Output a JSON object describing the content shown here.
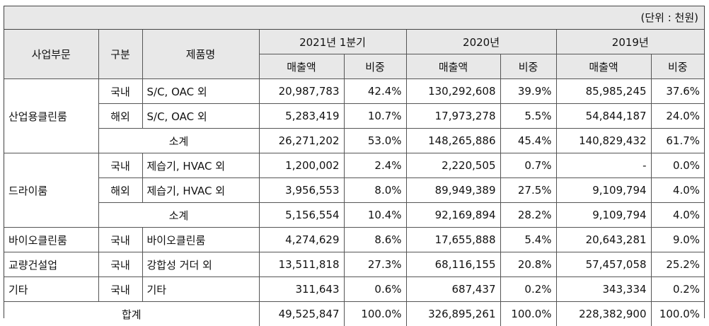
{
  "unit_label": "(단위 : 천원)",
  "header": {
    "col_segment": "사업부문",
    "col_type": "구분",
    "col_product": "제품명",
    "periods": [
      "2021년 1분기",
      "2020년",
      "2019년"
    ],
    "sales_label": "매출액",
    "share_label": "비중"
  },
  "rows": [
    {
      "segment": "산업용클린룸",
      "type": "국내",
      "product": "S/C, OAC 외",
      "v": [
        "20,987,783",
        "42.4%",
        "130,292,608",
        "39.9%",
        "85,985,245",
        "37.6%"
      ]
    },
    {
      "type": "해외",
      "product": "S/C, OAC 외",
      "v": [
        "5,283,419",
        "10.7%",
        "17,973,278",
        "5.5%",
        "54,844,187",
        "24.0%"
      ]
    },
    {
      "subtotal": "소계",
      "v": [
        "26,271,202",
        "53.0%",
        "148,265,886",
        "45.4%",
        "140,829,432",
        "61.7%"
      ]
    },
    {
      "segment": "드라이룸",
      "type": "국내",
      "product": "제습기, HVAC 외",
      "v": [
        "1,200,002",
        "2.4%",
        "2,220,505",
        "0.7%",
        "-",
        "0.0%"
      ]
    },
    {
      "type": "해외",
      "product": "제습기, HVAC 외",
      "v": [
        "3,956,553",
        "8.0%",
        "89,949,389",
        "27.5%",
        "9,109,794",
        "4.0%"
      ]
    },
    {
      "subtotal": "소계",
      "v": [
        "5,156,554",
        "10.4%",
        "92,169,894",
        "28.2%",
        "9,109,794",
        "4.0%"
      ]
    },
    {
      "segment": "바이오클린룸",
      "type": "국내",
      "product": "바이오클린룸",
      "v": [
        "4,274,629",
        "8.6%",
        "17,655,888",
        "5.4%",
        "20,643,281",
        "9.0%"
      ]
    },
    {
      "segment": "교량건설업",
      "type": "국내",
      "product": "강합성 거더 외",
      "v": [
        "13,511,818",
        "27.3%",
        "68,116,155",
        "20.8%",
        "57,457,058",
        "25.2%"
      ]
    },
    {
      "segment": "기타",
      "type": "국내",
      "product": "기타",
      "v": [
        "311,643",
        "0.6%",
        "687,437",
        "0.2%",
        "343,334",
        "0.2%"
      ]
    }
  ],
  "total": {
    "label": "합계",
    "v": [
      "49,525,847",
      "100.0%",
      "326,895,261",
      "100.0%",
      "228,382,900",
      "100.0%"
    ]
  }
}
